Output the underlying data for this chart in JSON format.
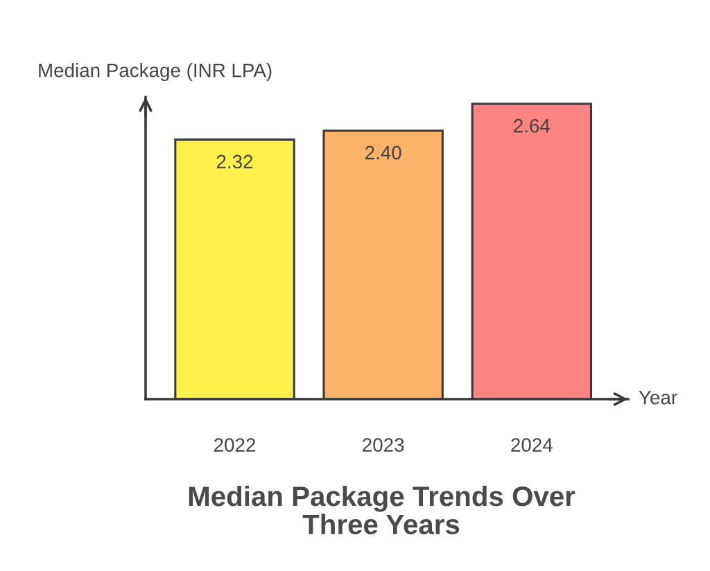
{
  "chart_data": {
    "type": "bar",
    "title": "Median Package Trends Over\nThree Years",
    "xlabel": "Year",
    "ylabel": "Median Package (INR LPA)",
    "categories": [
      "2022",
      "2023",
      "2024"
    ],
    "values": [
      2.32,
      2.4,
      2.64
    ],
    "value_labels": [
      "2.32",
      "2.40",
      "2.64"
    ],
    "colors": [
      "#fff04a",
      "#fdb26a",
      "#ff8585"
    ],
    "ylim": [
      0,
      2.7
    ],
    "tick_labels": "x",
    "grid": false,
    "legend": false
  }
}
